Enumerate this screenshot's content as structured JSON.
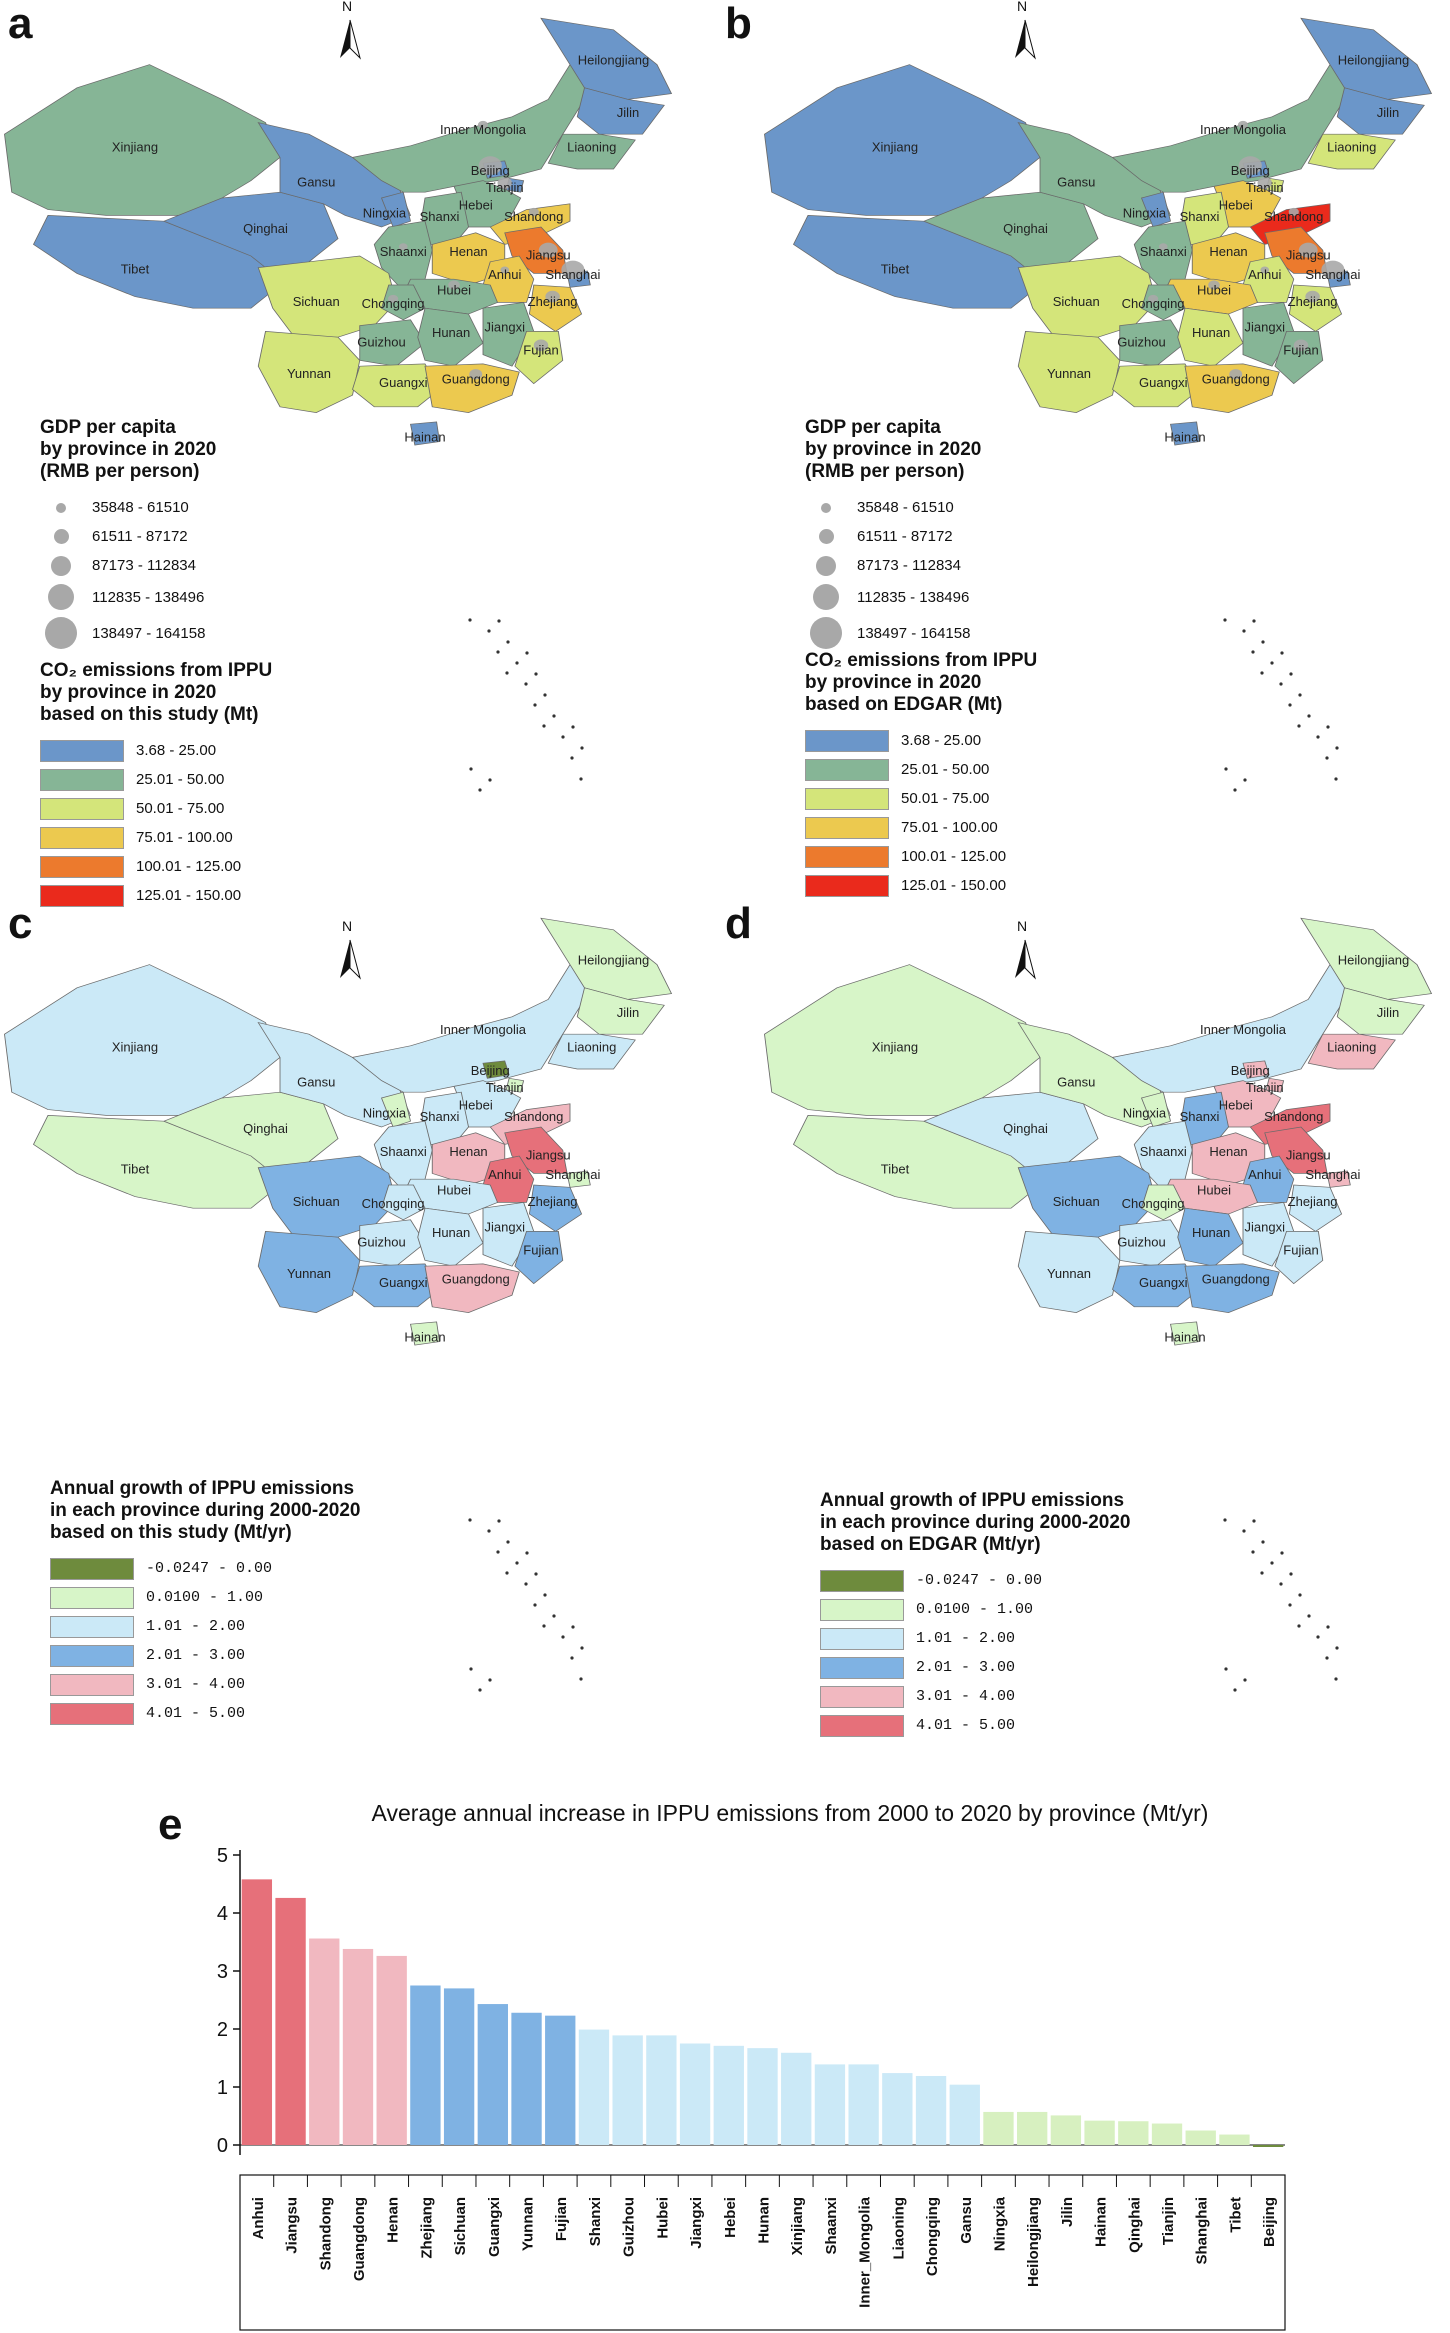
{
  "panels": {
    "a": {
      "letter": "a",
      "gdp_legend_title": [
        "GDP per capita",
        "by province in 2020",
        "(RMB per person)"
      ],
      "gdp_classes": [
        "35848 - 61510",
        "61511 - 87172",
        "87173 - 112834",
        "112835 - 138496",
        "138497 - 164158"
      ],
      "co2_legend_title": [
        "CO₂ emissions from IPPU",
        "by province in 2020",
        "based on this study (Mt)"
      ],
      "co2_classes": [
        "3.68 - 25.00",
        "25.01 - 50.00",
        "50.01 - 75.00",
        "75.01 - 100.00",
        "100.01 - 125.00",
        "125.01 - 150.00"
      ]
    },
    "b": {
      "letter": "b",
      "gdp_legend_title": [
        "GDP per capita",
        "by province in 2020",
        "(RMB per person)"
      ],
      "gdp_classes": [
        "35848 - 61510",
        "61511 - 87172",
        "87173 - 112834",
        "112835 - 138496",
        "138497 - 164158"
      ],
      "co2_legend_title": [
        "CO₂ emissions from IPPU",
        "by province in 2020",
        "based on EDGAR (Mt)"
      ],
      "co2_classes": [
        "3.68 - 25.00",
        "25.01 - 50.00",
        "50.01 - 75.00",
        "75.01 - 100.00",
        "100.01 - 125.00",
        "125.01 - 150.00"
      ]
    },
    "c": {
      "letter": "c",
      "growth_legend_title": [
        "Annual growth of IPPU emissions",
        "in each province during 2000-2020",
        "based on this study (Mt/yr)"
      ],
      "growth_classes": [
        "-0.0247 - 0.00",
        "0.0100 - 1.00",
        "1.01 - 2.00",
        "2.01 - 3.00",
        "3.01 - 4.00",
        "4.01 - 5.00"
      ]
    },
    "d": {
      "letter": "d",
      "growth_legend_title": [
        "Annual growth of IPPU emissions",
        "in each province during 2000-2020",
        "based on EDGAR (Mt/yr)"
      ],
      "growth_classes": [
        "-0.0247 - 0.00",
        "0.0100 - 1.00",
        "1.01 - 2.00",
        "2.01 - 3.00",
        "3.01 - 4.00",
        "4.01 - 5.00"
      ]
    }
  },
  "north_label": "N",
  "co2_colors": [
    "#6b96c9",
    "#86b596",
    "#d4e57a",
    "#ecc94f",
    "#ec7a2d",
    "#ea2a1c"
  ],
  "growth_colors": [
    "#6e8b3d",
    "#d7f5c8",
    "#cbe9f7",
    "#7fb2e3",
    "#f1b8c0",
    "#e6707a"
  ],
  "provinces": [
    "Xinjiang",
    "Tibet",
    "Qinghai",
    "Gansu",
    "Ningxia",
    "Inner Mongolia",
    "Heilongjiang",
    "Jilin",
    "Liaoning",
    "Beijing",
    "Tianjin",
    "Hebei",
    "Shanxi",
    "Shaanxi",
    "Shandong",
    "Henan",
    "Jiangsu",
    "Anhui",
    "Shanghai",
    "Zhejiang",
    "Hubei",
    "Sichuan",
    "Chongqing",
    "Guizhou",
    "Hunan",
    "Jiangxi",
    "Fujian",
    "Yunnan",
    "Guangxi",
    "Guangdong",
    "Hainan"
  ],
  "map_classes": {
    "a": {
      "Xinjiang": 1,
      "Tibet": 0,
      "Qinghai": 0,
      "Gansu": 0,
      "Ningxia": 0,
      "Inner Mongolia": 1,
      "Heilongjiang": 0,
      "Jilin": 0,
      "Liaoning": 1,
      "Beijing": 0,
      "Tianjin": 0,
      "Hebei": 1,
      "Shanxi": 1,
      "Shaanxi": 1,
      "Shandong": 3,
      "Henan": 3,
      "Jiangsu": 4,
      "Anhui": 3,
      "Shanghai": 0,
      "Zhejiang": 3,
      "Hubei": 1,
      "Sichuan": 2,
      "Chongqing": 1,
      "Guizhou": 1,
      "Hunan": 1,
      "Jiangxi": 1,
      "Fujian": 2,
      "Yunnan": 2,
      "Guangxi": 2,
      "Guangdong": 3,
      "Hainan": 0
    },
    "b": {
      "Xinjiang": 0,
      "Tibet": 0,
      "Qinghai": 1,
      "Gansu": 1,
      "Ningxia": 0,
      "Inner Mongolia": 1,
      "Heilongjiang": 0,
      "Jilin": 0,
      "Liaoning": 2,
      "Beijing": 0,
      "Tianjin": 2,
      "Hebei": 3,
      "Shanxi": 2,
      "Shaanxi": 1,
      "Shandong": 5,
      "Henan": 3,
      "Jiangsu": 4,
      "Anhui": 2,
      "Shanghai": 0,
      "Zhejiang": 2,
      "Hubei": 3,
      "Sichuan": 2,
      "Chongqing": 1,
      "Guizhou": 1,
      "Hunan": 2,
      "Jiangxi": 1,
      "Fujian": 1,
      "Yunnan": 2,
      "Guangxi": 2,
      "Guangdong": 3,
      "Hainan": 0
    },
    "c": {
      "Xinjiang": 2,
      "Tibet": 1,
      "Qinghai": 1,
      "Gansu": 2,
      "Ningxia": 1,
      "Inner Mongolia": 2,
      "Heilongjiang": 1,
      "Jilin": 1,
      "Liaoning": 2,
      "Beijing": 0,
      "Tianjin": 1,
      "Hebei": 2,
      "Shanxi": 2,
      "Shaanxi": 2,
      "Shandong": 4,
      "Henan": 4,
      "Jiangsu": 5,
      "Anhui": 5,
      "Shanghai": 1,
      "Zhejiang": 3,
      "Hubei": 2,
      "Sichuan": 3,
      "Chongqing": 2,
      "Guizhou": 2,
      "Hunan": 2,
      "Jiangxi": 2,
      "Fujian": 3,
      "Yunnan": 3,
      "Guangxi": 3,
      "Guangdong": 4,
      "Hainan": 1
    },
    "d": {
      "Xinjiang": 1,
      "Tibet": 1,
      "Qinghai": 2,
      "Gansu": 1,
      "Ningxia": 1,
      "Inner Mongolia": 2,
      "Heilongjiang": 1,
      "Jilin": 1,
      "Liaoning": 4,
      "Beijing": 4,
      "Tianjin": 4,
      "Hebei": 4,
      "Shanxi": 3,
      "Shaanxi": 2,
      "Shandong": 5,
      "Henan": 4,
      "Jiangsu": 5,
      "Anhui": 3,
      "Shanghai": 4,
      "Zhejiang": 2,
      "Hubei": 4,
      "Sichuan": 3,
      "Chongqing": 1,
      "Guizhou": 2,
      "Hunan": 3,
      "Jiangxi": 2,
      "Fujian": 2,
      "Yunnan": 2,
      "Guangxi": 3,
      "Guangdong": 3,
      "Hainan": 1
    }
  },
  "chart_data": {
    "letter": "e",
    "type": "bar",
    "title": "Average annual increase in IPPU emissions from 2000 to 2020 by province (Mt/yr)",
    "xlabel": "",
    "ylabel": "",
    "ylim": [
      0,
      5
    ],
    "yticks": [
      0,
      1,
      2,
      3,
      4,
      5
    ],
    "categories": [
      "Anhui",
      "Jiangsu",
      "Shandong",
      "Guangdong",
      "Henan",
      "Zhejiang",
      "Sichuan",
      "Guangxi",
      "Yunnan",
      "Fujian",
      "Shanxi",
      "Guizhou",
      "Hubei",
      "Jiangxi",
      "Hebei",
      "Hunan",
      "Xinjiang",
      "Shaanxi",
      "Inner_Mongolia",
      "Liaoning",
      "Chongqing",
      "Gansu",
      "Ningxia",
      "Heilongjiang",
      "Jilin",
      "Hainan",
      "Qinghai",
      "Tianjin",
      "Shanghai",
      "Tibet",
      "Beijing"
    ],
    "values": [
      4.58,
      4.26,
      3.56,
      3.38,
      3.26,
      2.75,
      2.7,
      2.43,
      2.28,
      2.23,
      1.99,
      1.89,
      1.89,
      1.75,
      1.71,
      1.67,
      1.59,
      1.39,
      1.39,
      1.24,
      1.19,
      1.04,
      0.57,
      0.57,
      0.51,
      0.42,
      0.41,
      0.37,
      0.25,
      0.18,
      -0.02
    ],
    "bar_colors": [
      "#e6707a",
      "#e6707a",
      "#f1b8c0",
      "#f1b8c0",
      "#f1b8c0",
      "#7fb2e3",
      "#7fb2e3",
      "#7fb2e3",
      "#7fb2e3",
      "#7fb2e3",
      "#cbe9f7",
      "#cbe9f7",
      "#cbe9f7",
      "#cbe9f7",
      "#cbe9f7",
      "#cbe9f7",
      "#cbe9f7",
      "#cbe9f7",
      "#cbe9f7",
      "#cbe9f7",
      "#cbe9f7",
      "#cbe9f7",
      "#d7f0c0",
      "#d7f0c0",
      "#d7f0c0",
      "#d7f0c0",
      "#d7f0c0",
      "#d7f0c0",
      "#d7f0c0",
      "#d7f0c0",
      "#6e8b3d"
    ]
  }
}
